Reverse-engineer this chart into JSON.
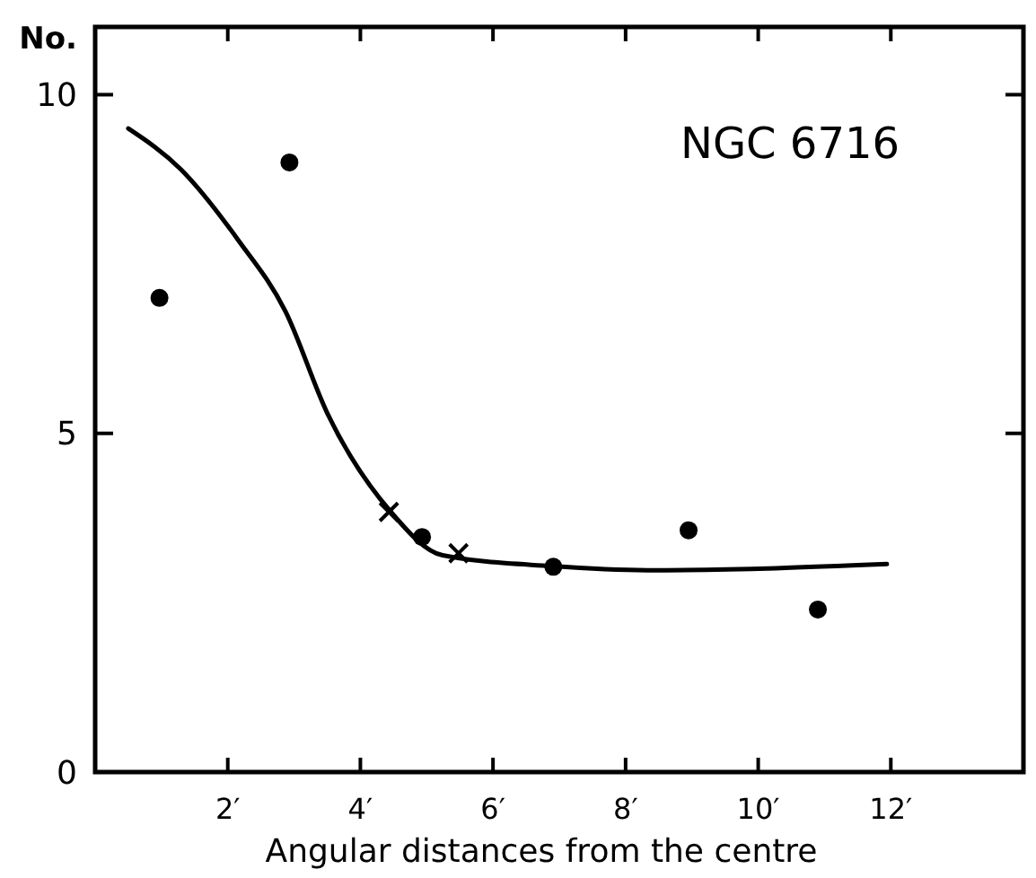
{
  "chart_data": {
    "type": "scatter",
    "xlabel": "Angular distances from the centre",
    "ylabel": "No.",
    "annotations": [
      "NGC 6716"
    ],
    "xlim": [
      0,
      14
    ],
    "ylim": [
      0,
      11
    ],
    "xticks": [
      {
        "value": 2,
        "label": "2′"
      },
      {
        "value": 4,
        "label": "4′"
      },
      {
        "value": 6,
        "label": "6′"
      },
      {
        "value": 8,
        "label": "8′"
      },
      {
        "value": 10,
        "label": "10′"
      },
      {
        "value": 12,
        "label": "12′"
      }
    ],
    "yticks": [
      0,
      5,
      10
    ],
    "grid": false,
    "series": [
      {
        "marker": "circle",
        "color": "#000000",
        "x": [
          0.97,
          2.93,
          4.93,
          6.91,
          8.95,
          10.9
        ],
        "values": [
          7.0,
          9.0,
          3.47,
          3.03,
          3.57,
          2.4
        ]
      },
      {
        "marker": "cross",
        "color": "#000000",
        "x": [
          4.43,
          5.48
        ],
        "values": [
          3.84,
          3.23
        ]
      },
      {
        "type": "line",
        "line_style": "solid",
        "color": "#000000",
        "x": [
          0.5,
          1.29,
          2.16,
          2.87,
          3.5,
          4.46,
          5.24,
          6.88,
          8.33,
          10.27,
          11.94
        ],
        "values": [
          9.5,
          8.9,
          7.85,
          6.8,
          5.3,
          3.84,
          3.2,
          3.04,
          2.98,
          3.01,
          3.07
        ]
      }
    ]
  }
}
